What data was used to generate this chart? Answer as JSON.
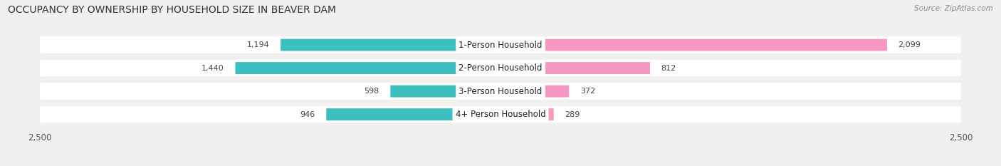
{
  "title": "OCCUPANCY BY OWNERSHIP BY HOUSEHOLD SIZE IN BEAVER DAM",
  "source": "Source: ZipAtlas.com",
  "categories": [
    "1-Person Household",
    "2-Person Household",
    "3-Person Household",
    "4+ Person Household"
  ],
  "owner_values": [
    1194,
    1440,
    598,
    946
  ],
  "renter_values": [
    2099,
    812,
    372,
    289
  ],
  "max_axis": 2500,
  "owner_color": "#3dbfbf",
  "renter_color": "#f799c0",
  "bg_color": "#f0f0f0",
  "row_bg_color": "#ffffff",
  "title_fontsize": 10,
  "source_fontsize": 7.5,
  "label_fontsize": 8.5,
  "value_fontsize": 8,
  "axis_label_fontsize": 8.5,
  "legend_fontsize": 8.5
}
